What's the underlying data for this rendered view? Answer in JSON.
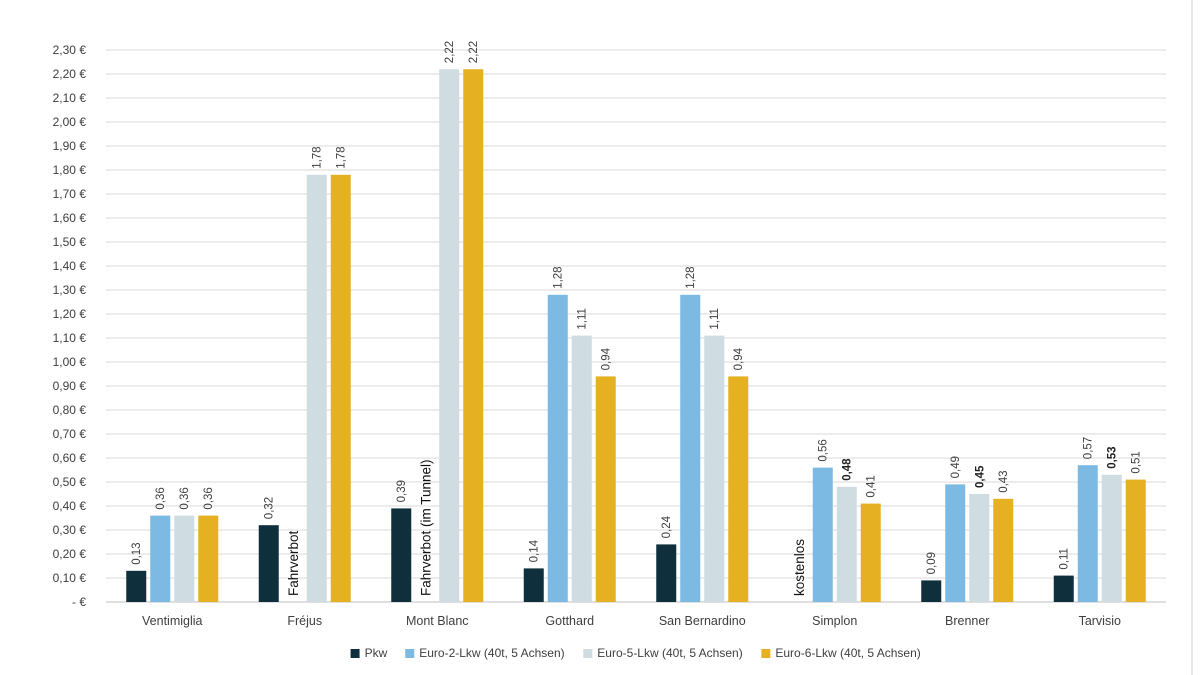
{
  "chart_data": {
    "type": "bar",
    "categories": [
      "Ventimiglia",
      "Fréjus",
      "Mont Blanc",
      "Gotthard",
      "San Bernardino",
      "Simplon",
      "Brenner",
      "Tarvisio"
    ],
    "series": [
      {
        "name": "Pkw",
        "color": "#0f2f3d",
        "values": [
          0.13,
          0.32,
          0.39,
          0.14,
          0.24,
          null,
          0.09,
          0.11
        ],
        "labels": [
          "0,13",
          "0,32",
          "0,39",
          "0,14",
          "0,24",
          "",
          "0,09",
          "0,11"
        ]
      },
      {
        "name": "Euro-2-Lkw (40t, 5 Achsen)",
        "color": "#7cb9e3",
        "values": [
          0.36,
          null,
          null,
          1.28,
          1.28,
          0.56,
          0.49,
          0.57
        ],
        "labels": [
          "0,36",
          "",
          "",
          "1,28",
          "1,28",
          "0,56",
          "0,49",
          "0,57"
        ]
      },
      {
        "name": "Euro-5-Lkw (40t, 5 Achsen)",
        "color": "#cfdce1",
        "values": [
          0.36,
          1.78,
          2.22,
          1.11,
          1.11,
          0.48,
          0.45,
          0.53
        ],
        "labels": [
          "0,36",
          "1,78",
          "2,22",
          "1,11",
          "1,11",
          "0,48",
          "0,45",
          "0,53"
        ]
      },
      {
        "name": "Euro-6-Lkw (40t, 5 Achsen)",
        "color": "#e5b122",
        "values": [
          0.36,
          1.78,
          2.22,
          0.94,
          0.94,
          0.41,
          0.43,
          0.51
        ],
        "labels": [
          "0,36",
          "1,78",
          "2,22",
          "0,94",
          "0,94",
          "0,41",
          "0,43",
          "0,51"
        ]
      }
    ],
    "bold_labels": [
      [],
      [],
      [
        [
          0,
          2
        ]
      ],
      [],
      [
        [
          3,
          2
        ]
      ],
      [
        [
          5,
          2
        ]
      ],
      [
        [
          6,
          2
        ]
      ],
      [
        [
          7,
          2
        ]
      ]
    ],
    "annotations": [
      {
        "category": 1,
        "series": 1,
        "text": "Fahrverbot"
      },
      {
        "category": 2,
        "series": 1,
        "text": "Fahrverbot (im Tunnel)"
      },
      {
        "category": 5,
        "series": 0,
        "text": "kostenlos"
      }
    ],
    "ylim": [
      0,
      2.3
    ],
    "yticks": [
      0,
      0.1,
      0.2,
      0.3,
      0.4,
      0.5,
      0.6,
      0.7,
      0.8,
      0.9,
      1.0,
      1.1,
      1.2,
      1.3,
      1.4,
      1.5,
      1.6,
      1.7,
      1.8,
      1.9,
      2.0,
      2.1,
      2.2,
      2.3
    ],
    "ytick_labels": [
      "-   €",
      "0,10 €",
      "0,20 €",
      "0,30 €",
      "0,40 €",
      "0,50 €",
      "0,60 €",
      "0,70 €",
      "0,80 €",
      "0,90 €",
      "1,00 €",
      "1,10 €",
      "1,20 €",
      "1,30 €",
      "1,40 €",
      "1,50 €",
      "1,60 €",
      "1,70 €",
      "1,80 €",
      "1,90 €",
      "2,00 €",
      "2,10 €",
      "2,20 €",
      "2,30 €"
    ],
    "grid": true,
    "legend_position": "bottom"
  }
}
